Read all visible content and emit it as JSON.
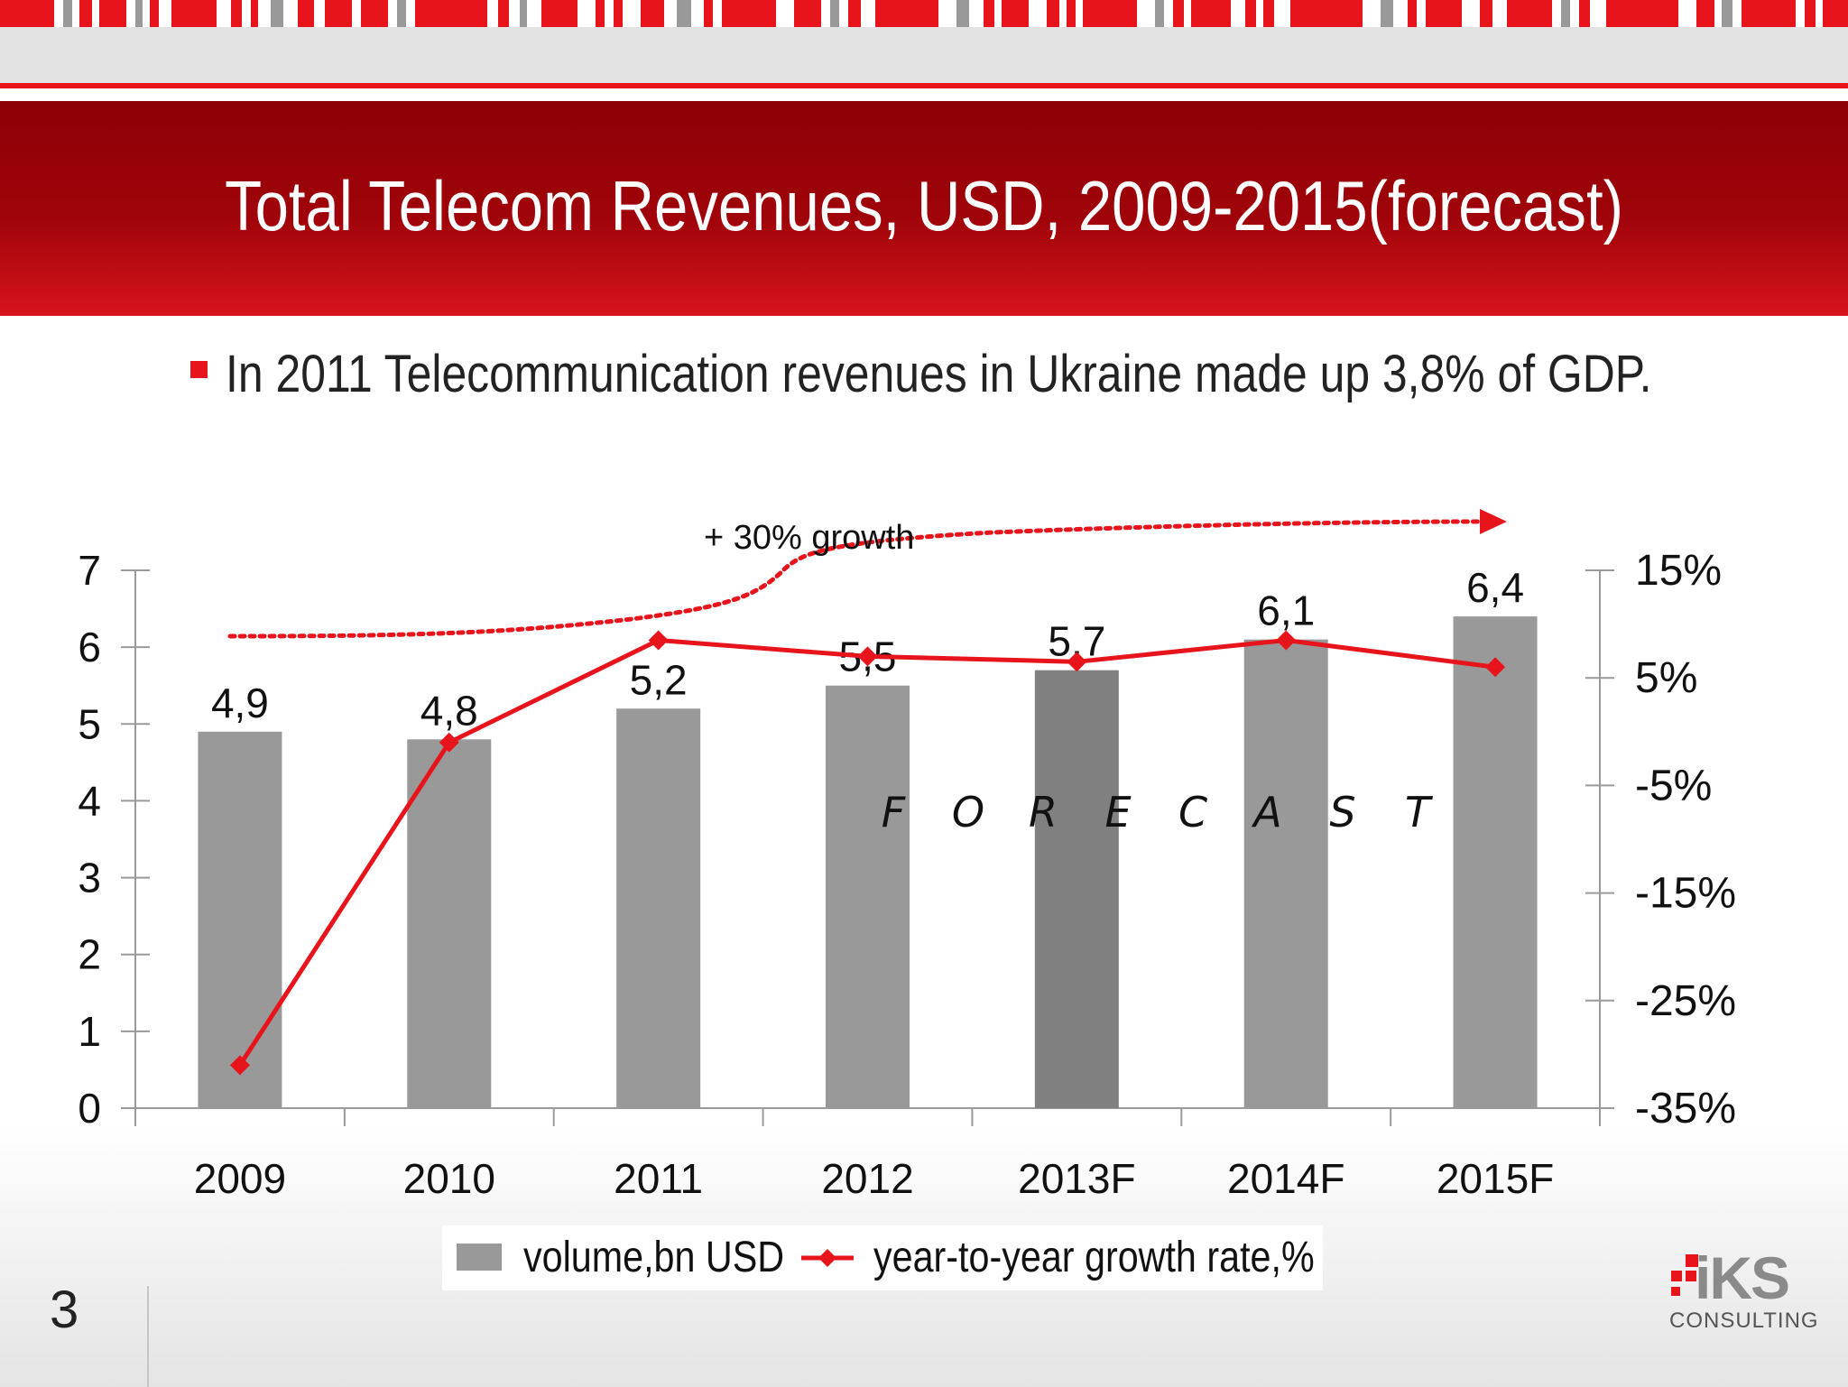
{
  "slide": {
    "title": "Total Telecom Revenues, USD, 2009-2015(forecast)",
    "bullet": "In 2011 Telecommunication revenues in Ukraine made up 3,8% of GDP.",
    "page_number": "3",
    "logo": {
      "name": "iKS",
      "subtitle": "CONSULTING"
    }
  },
  "colors": {
    "accent": "#e8141c",
    "header_dark": "#8c0006",
    "bar": "#999999",
    "bar_highlight": "#808080",
    "line": "#e8141c"
  },
  "chart_data": {
    "type": "bar",
    "categories": [
      "2009",
      "2010",
      "2011",
      "2012",
      "2013F",
      "2014F",
      "2015F"
    ],
    "series": [
      {
        "name": "volume,bn USD",
        "type": "bar",
        "axis": "left",
        "values": [
          4.9,
          4.8,
          5.2,
          5.5,
          5.7,
          6.1,
          6.4
        ],
        "labels": [
          "4,9",
          "4,8",
          "5,2",
          "5,5",
          "5,7",
          "6,1",
          "6,4"
        ]
      },
      {
        "name": "year-to-year growth rate,%",
        "type": "line",
        "axis": "right",
        "values": [
          -31.0,
          -1.0,
          8.5,
          7.0,
          6.5,
          8.5,
          6.0
        ]
      }
    ],
    "y_left": {
      "min": 0,
      "max": 7,
      "ticks": [
        "0",
        "1",
        "2",
        "3",
        "4",
        "5",
        "6",
        "7"
      ]
    },
    "y_right": {
      "min": -35,
      "max": 15,
      "ticks": [
        "-35%",
        "-25%",
        "-15%",
        "-5%",
        "5%",
        "15%"
      ]
    },
    "annotations": {
      "growth_label": "+ 30%  growth",
      "forecast_letters": [
        "F",
        "O",
        "R",
        "E",
        "C",
        "A",
        "S",
        "T"
      ]
    },
    "legend_position": "bottom",
    "grid": false
  }
}
